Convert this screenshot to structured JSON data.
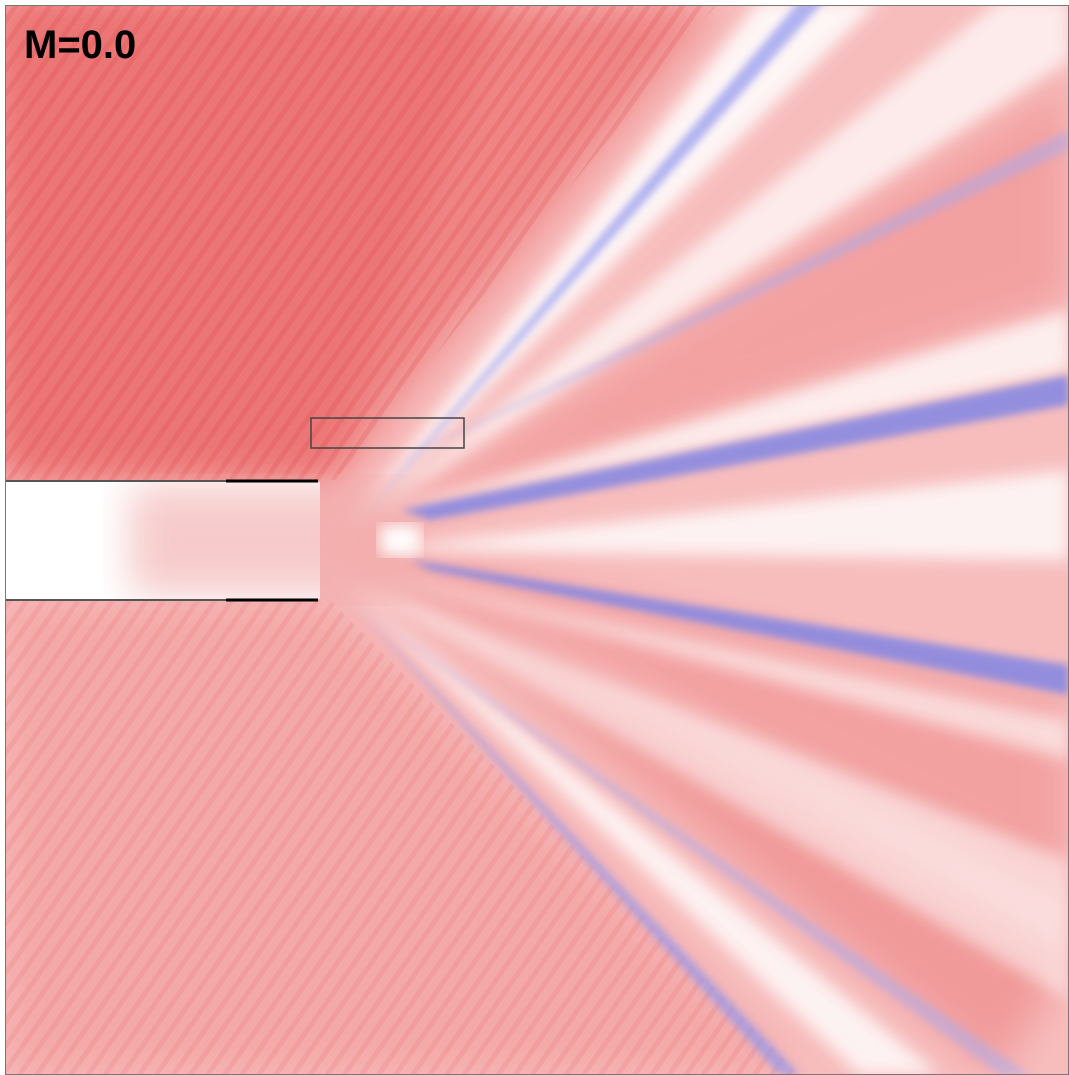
{
  "label": "M=0.0"
}
